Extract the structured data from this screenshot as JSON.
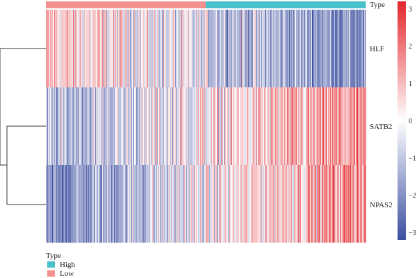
{
  "chart_data": {
    "type": "heatmap",
    "title": "",
    "rows": [
      "HLF",
      "SATB2",
      "NPAS2"
    ],
    "annotation": {
      "title": "Type",
      "segments": [
        {
          "label": "Low",
          "count": 230
        },
        {
          "label": "High",
          "count": 230
        }
      ]
    },
    "legend": {
      "title": "Type",
      "entries": [
        {
          "label": "High"
        },
        {
          "label": "Low"
        }
      ]
    },
    "colorbar": {
      "range": [
        -3.2,
        3.2
      ],
      "ticks": [
        "3",
        "2",
        "1",
        "0",
        "−1",
        "−2",
        "−3"
      ],
      "tick_values": [
        3,
        2,
        1,
        0,
        -1,
        -2,
        -3
      ]
    },
    "row_trends": {
      "HLF": {
        "start": 0.7,
        "end": -1.9
      },
      "SATB2": {
        "start": -1.2,
        "end": 1.3
      },
      "NPAS2": {
        "start": -2.0,
        "end": 1.7
      }
    },
    "n_columns": 460,
    "dendrogram": "rows clustered: SATB2 + NPAS2 joined first, then with HLF"
  },
  "colors": {
    "high": "#49c1cb",
    "low": "#f2928e",
    "scale_low": "#3c4fa0",
    "scale_mid": "#ffffff",
    "scale_high": "#e3262b",
    "dendrogram": "#333333"
  }
}
